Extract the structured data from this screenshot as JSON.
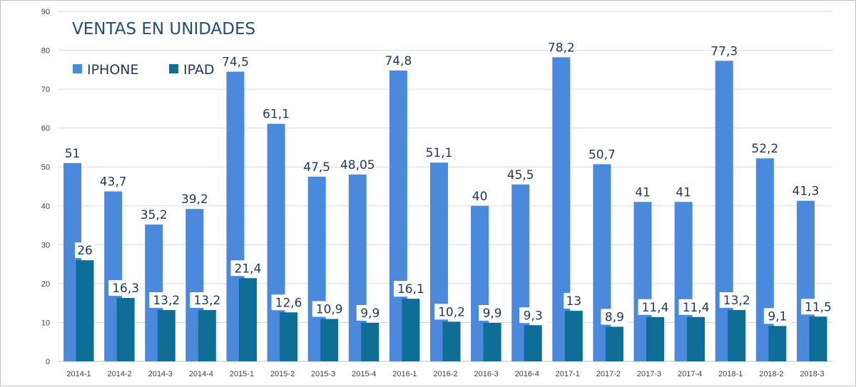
{
  "chart_data": {
    "type": "bar",
    "title": "VENTAS EN UNIDADES",
    "xlabel": "",
    "ylabel": "",
    "ylim": [
      0,
      90
    ],
    "yticks": [
      0,
      10,
      20,
      30,
      40,
      50,
      60,
      70,
      80,
      90
    ],
    "grid": true,
    "legend_position": "top-left",
    "categories": [
      "2014-1",
      "2014-2",
      "2014-3",
      "2014-4",
      "2015-1",
      "2015-2",
      "2015-3",
      "2015-4",
      "2016-1",
      "2016-2",
      "2016-3",
      "2016-4",
      "2017-1",
      "2017-2",
      "2017-3",
      "2017-4",
      "2018-1",
      "2018-2",
      "2018-3"
    ],
    "series": [
      {
        "name": "IPHONE",
        "color": "#4a89dc",
        "values": [
          51,
          43.7,
          35.2,
          39.2,
          74.5,
          61.1,
          47.5,
          48.05,
          74.8,
          51.1,
          40,
          45.5,
          78.2,
          50.7,
          41,
          41,
          77.3,
          52.2,
          41.3
        ],
        "labels": [
          "51",
          "43,7",
          "35,2",
          "39,2",
          "74,5",
          "61,1",
          "47,5",
          "48,05",
          "74,8",
          "51,1",
          "40",
          "45,5",
          "78,2",
          "50,7",
          "41",
          "41",
          "77,3",
          "52,2",
          "41,3"
        ]
      },
      {
        "name": "IPAD",
        "color": "#0e6e96",
        "values": [
          26,
          16.3,
          13.2,
          13.2,
          21.4,
          12.6,
          10.9,
          9.9,
          16.1,
          10.2,
          9.9,
          9.3,
          13,
          8.9,
          11.4,
          11.4,
          13.2,
          9.1,
          11.5
        ],
        "labels": [
          "26",
          "16,3",
          "13,2",
          "13,2",
          "21,4",
          "12,6",
          "10,9",
          "9,9",
          "16,1",
          "10,2",
          "9,9",
          "9,3",
          "13",
          "8,9",
          "11,4",
          "11,4",
          "13,2",
          "9,1",
          "11,5"
        ]
      }
    ]
  }
}
